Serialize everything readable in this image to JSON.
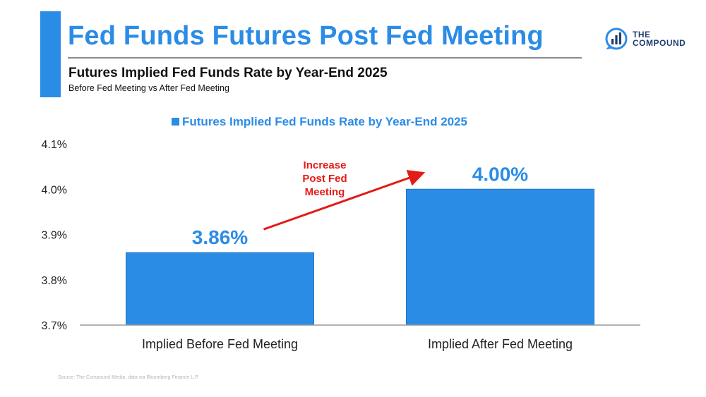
{
  "header": {
    "title": "Fed Funds Futures Post Fed Meeting",
    "subtitle": "Futures Implied Fed Funds Rate by Year-End 2025",
    "subtitle2": "Before Fed Meeting vs After Fed Meeting"
  },
  "brand": {
    "line1": "THE",
    "line2": "COMPOUND",
    "icon": "compound-logo-icon"
  },
  "footer": {
    "source": "Source: The Compound Media, data via Bloomberg Finance L.P."
  },
  "colors": {
    "accent": "#2b8ce6",
    "annotation": "#e41b17",
    "brand": "#1f3f73"
  },
  "chart_data": {
    "type": "bar",
    "title": "",
    "legend": "Futures Implied Fed Funds Rate by Year-End 2025",
    "legend_position": "top-center",
    "categories": [
      "Implied Before Fed Meeting",
      "Implied After Fed Meeting"
    ],
    "values": [
      3.86,
      4.0
    ],
    "data_labels": [
      "3.86%",
      "4.00%"
    ],
    "ylim": [
      3.7,
      4.1
    ],
    "yticks": [
      3.7,
      3.8,
      3.9,
      4.0,
      4.1
    ],
    "ytick_labels": [
      "3.7%",
      "3.8%",
      "3.9%",
      "4.0%",
      "4.1%"
    ],
    "xlabel": "",
    "ylabel": "",
    "grid": false,
    "annotation": {
      "lines": [
        "Increase",
        "Post Fed",
        "Meeting"
      ],
      "arrow_from": "Implied Before Fed Meeting",
      "arrow_to": "Implied After Fed Meeting"
    }
  }
}
